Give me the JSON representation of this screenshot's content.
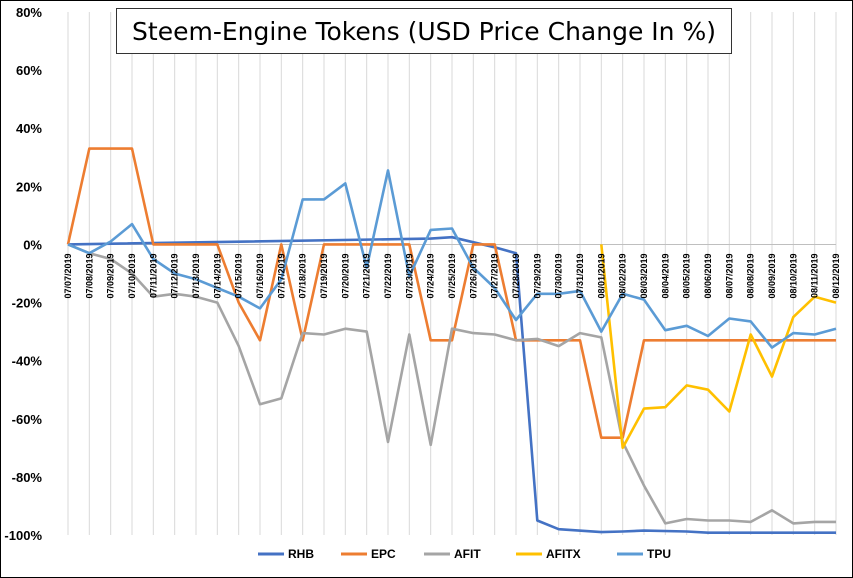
{
  "chart_data": {
    "type": "line",
    "title": "Steem-Engine Tokens (USD Price Change In %)",
    "ylim": [
      -100,
      80
    ],
    "yticks": [
      "80%",
      "60%",
      "40%",
      "20%",
      "0%",
      "-20%",
      "-40%",
      "-60%",
      "-80%",
      "-100%"
    ],
    "ytick_values": [
      80,
      60,
      40,
      20,
      0,
      -20,
      -40,
      -60,
      -80,
      -100
    ],
    "grid": "vertical",
    "legend": "bottom",
    "categories": [
      "07/07/2019",
      "07/08/2019",
      "07/09/2019",
      "07/10/2019",
      "07/11/2019",
      "07/12/2019",
      "07/13/2019",
      "07/14/2019",
      "07/15/2019",
      "07/16/2019",
      "07/17/2019",
      "07/18/2019",
      "07/19/2019",
      "07/20/2019",
      "07/21/2019",
      "07/22/2019",
      "07/23/2019",
      "07/24/2019",
      "07/25/2019",
      "07/26/2019",
      "07/27/2019",
      "07/28/2019",
      "07/29/2019",
      "07/30/2019",
      "07/31/2019",
      "08/01/2019",
      "08/02/2019",
      "08/03/2019",
      "08/04/2019",
      "08/05/2019",
      "08/06/2019",
      "08/07/2019",
      "08/08/2019",
      "08/09/2019",
      "08/10/2019",
      "08/11/2019",
      "08/12/2019"
    ],
    "series": [
      {
        "name": "RHB",
        "color": "#4472C4",
        "points": [
          [
            0,
            0
          ],
          [
            17,
            2
          ],
          [
            18,
            2.5
          ],
          [
            20,
            -1
          ],
          [
            21,
            -3
          ],
          [
            22,
            -95
          ],
          [
            23,
            -98
          ],
          [
            25,
            -99
          ],
          [
            26,
            -98.8
          ],
          [
            27,
            -98.5
          ],
          [
            29,
            -98.8
          ],
          [
            30,
            -99.2
          ],
          [
            36,
            -99.2
          ]
        ]
      },
      {
        "name": "EPC",
        "color": "#ED7D31",
        "points": [
          [
            0,
            0
          ],
          [
            1,
            33
          ],
          [
            2,
            33
          ],
          [
            3,
            33
          ],
          [
            4,
            0
          ],
          [
            5,
            0
          ],
          [
            6,
            0
          ],
          [
            7,
            0
          ],
          [
            8,
            -20
          ],
          [
            9,
            -33
          ],
          [
            10,
            0
          ],
          [
            11,
            -33
          ],
          [
            12,
            0
          ],
          [
            13,
            0
          ],
          [
            14,
            0
          ],
          [
            15,
            0
          ],
          [
            16,
            0
          ],
          [
            17,
            -33
          ],
          [
            18,
            -33
          ],
          [
            19,
            0
          ],
          [
            20,
            0
          ],
          [
            21,
            -33
          ],
          [
            22,
            -33
          ],
          [
            23,
            -33
          ],
          [
            24,
            -33
          ],
          [
            25,
            -66.5
          ],
          [
            26,
            -66.5
          ],
          [
            27,
            -33
          ],
          [
            28,
            -33
          ],
          [
            29,
            -33
          ],
          [
            30,
            -33
          ],
          [
            31,
            -33
          ],
          [
            32,
            -33
          ],
          [
            33,
            -33
          ],
          [
            34,
            -33
          ],
          [
            35,
            -33
          ],
          [
            36,
            -33
          ]
        ]
      },
      {
        "name": "AFIT",
        "color": "#A5A5A5",
        "points": [
          [
            0,
            0
          ],
          [
            1,
            -3
          ],
          [
            2,
            -5
          ],
          [
            3,
            -10
          ],
          [
            4,
            -18
          ],
          [
            5,
            -17
          ],
          [
            6,
            -18
          ],
          [
            7,
            -20
          ],
          [
            8,
            -35
          ],
          [
            9,
            -55
          ],
          [
            10,
            -53
          ],
          [
            11,
            -30.5
          ],
          [
            12,
            -31
          ],
          [
            13,
            -29
          ],
          [
            14,
            -30
          ],
          [
            15,
            -68
          ],
          [
            16,
            -31
          ],
          [
            17,
            -69
          ],
          [
            18,
            -29
          ],
          [
            19,
            -30.5
          ],
          [
            20,
            -31
          ],
          [
            21,
            -33
          ],
          [
            22,
            -32.5
          ],
          [
            23,
            -35
          ],
          [
            24,
            -30.5
          ],
          [
            25,
            -32
          ],
          [
            26,
            -68
          ],
          [
            27,
            -83
          ],
          [
            28,
            -96
          ],
          [
            29,
            -94.5
          ],
          [
            30,
            -95
          ],
          [
            31,
            -95
          ],
          [
            32,
            -95.5
          ],
          [
            33,
            -91.5
          ],
          [
            34,
            -96
          ],
          [
            35,
            -95.5
          ],
          [
            36,
            -95.5
          ]
        ]
      },
      {
        "name": "AFITX",
        "color": "#FFC000",
        "points": [
          [
            25,
            0
          ],
          [
            26,
            -70
          ],
          [
            27,
            -56.5
          ],
          [
            28,
            -56
          ],
          [
            29,
            -48.5
          ],
          [
            30,
            -50
          ],
          [
            31,
            -57.5
          ],
          [
            32,
            -31
          ],
          [
            33,
            -45.5
          ],
          [
            34,
            -25
          ],
          [
            35,
            -18
          ],
          [
            36,
            -20
          ]
        ]
      },
      {
        "name": "TPU",
        "color": "#5B9BD5",
        "points": [
          [
            0,
            0
          ],
          [
            1,
            -3
          ],
          [
            2,
            1
          ],
          [
            3,
            7
          ],
          [
            4,
            -5
          ],
          [
            5,
            -10
          ],
          [
            6,
            -12
          ],
          [
            7,
            -15
          ],
          [
            8,
            -18
          ],
          [
            9,
            -22
          ],
          [
            10,
            -12
          ],
          [
            11,
            15.5
          ],
          [
            12,
            15.5
          ],
          [
            13,
            21
          ],
          [
            14,
            -8
          ],
          [
            15,
            25.5
          ],
          [
            16,
            -11
          ],
          [
            17,
            5
          ],
          [
            18,
            5.5
          ],
          [
            19,
            -8
          ],
          [
            20,
            -15
          ],
          [
            21,
            -26
          ],
          [
            22,
            -17
          ],
          [
            23,
            -17
          ],
          [
            24,
            -16
          ],
          [
            25,
            -30
          ],
          [
            26,
            -17
          ],
          [
            27,
            -19
          ],
          [
            28,
            -29.5
          ],
          [
            29,
            -28
          ],
          [
            30,
            -31.5
          ],
          [
            31,
            -25.5
          ],
          [
            32,
            -26.5
          ],
          [
            33,
            -35.5
          ],
          [
            34,
            -30.5
          ],
          [
            35,
            -31
          ],
          [
            36,
            -29
          ]
        ]
      }
    ]
  }
}
